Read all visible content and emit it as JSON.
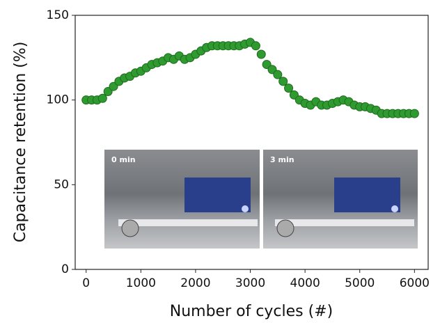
{
  "chart_data": {
    "type": "scatter",
    "xlabel": "Number of cycles (#)",
    "ylabel": "Capacitance retention (%)",
    "x": [
      0,
      100,
      200,
      300,
      400,
      500,
      600,
      700,
      800,
      900,
      1000,
      1100,
      1200,
      1300,
      1400,
      1500,
      1600,
      1700,
      1800,
      1900,
      2000,
      2100,
      2200,
      2300,
      2400,
      2500,
      2600,
      2700,
      2800,
      2900,
      3000,
      3100,
      3200,
      3300,
      3400,
      3500,
      3600,
      3700,
      3800,
      3900,
      4000,
      4100,
      4200,
      4300,
      4400,
      4500,
      4600,
      4700,
      4800,
      4900,
      5000,
      5100,
      5200,
      5300,
      5400,
      5500,
      5600,
      5700,
      5800,
      5900,
      6000
    ],
    "series": [
      {
        "color": "#2f9a2f",
        "values": [
          100,
          100,
          100,
          101,
          105,
          108,
          111,
          113,
          114,
          116,
          117,
          119,
          121,
          122,
          123,
          125,
          124,
          126,
          124,
          125,
          127,
          129,
          131,
          132,
          132,
          132,
          132,
          132,
          132,
          133,
          134,
          132,
          127,
          121,
          118,
          115,
          111,
          107,
          103,
          100,
          98,
          97,
          99,
          97,
          97,
          98,
          99,
          100,
          99,
          97,
          96,
          96,
          95,
          94,
          92,
          92,
          92,
          92,
          92,
          92,
          92
        ]
      }
    ],
    "xlim": [
      -200,
      6250
    ],
    "ylim": [
      0,
      150
    ],
    "xticks": [
      0,
      1000,
      2000,
      3000,
      4000,
      5000,
      6000
    ],
    "yticks": [
      0,
      50,
      100,
      150
    ],
    "annotations": [
      "0 min",
      "3 min"
    ]
  }
}
